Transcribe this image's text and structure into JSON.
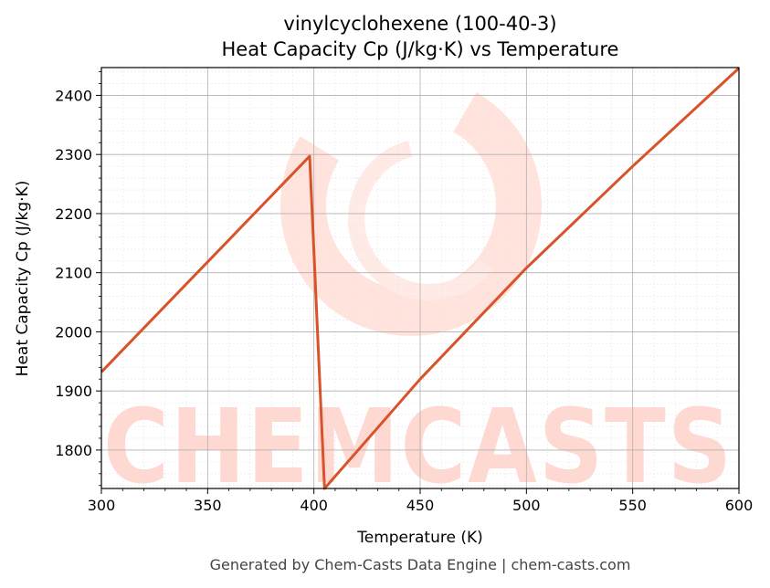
{
  "chart_data": {
    "type": "line",
    "title": "vinylcyclohexene (100-40-3)",
    "subtitle": "Heat Capacity Cp (J/kg·K) vs Temperature",
    "xlabel": "Temperature (K)",
    "ylabel": "Heat Capacity Cp (J/kg·K)",
    "xlim": [
      300,
      600
    ],
    "ylim": [
      1735,
      2447
    ],
    "xticks": [
      300,
      350,
      400,
      450,
      500,
      550,
      600
    ],
    "yticks": [
      1800,
      1900,
      2000,
      2100,
      2200,
      2300,
      2400
    ],
    "grid": true,
    "series": [
      {
        "color": "#d9532a",
        "x": [
          300,
          398,
          405,
          450,
          500,
          550,
          600
        ],
        "y": [
          1932,
          2297,
          1735,
          1920,
          2108,
          2280,
          2446
        ]
      }
    ]
  },
  "watermark": {
    "text": "CHEMCASTS",
    "color": "#ffd9d1"
  },
  "footer": {
    "text": "Generated by Chem-Casts Data Engine | chem-casts.com"
  }
}
